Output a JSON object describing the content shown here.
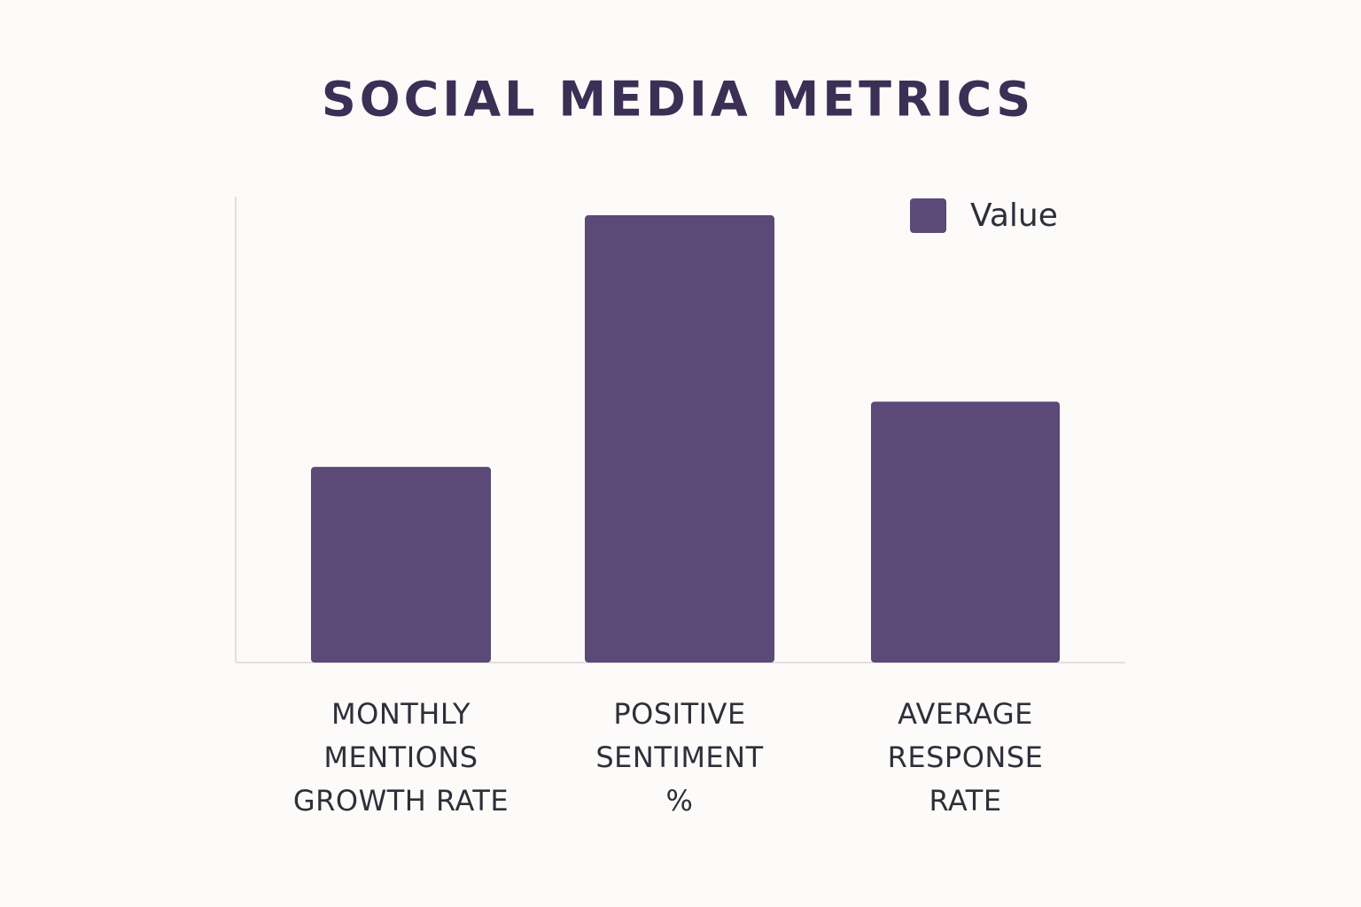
{
  "chart_data": {
    "type": "bar",
    "title": "SOCIAL MEDIA METRICS",
    "categories": [
      "MONTHLY MENTIONS GROWTH RATE",
      "POSITIVE SENTIMENT %",
      "AVERAGE RESPONSE RATE"
    ],
    "series": [
      {
        "name": "Value",
        "color": "#5b4977",
        "values": [
          42,
          96,
          56
        ]
      }
    ],
    "ylim": [
      0,
      100
    ],
    "legend": "top-right"
  }
}
